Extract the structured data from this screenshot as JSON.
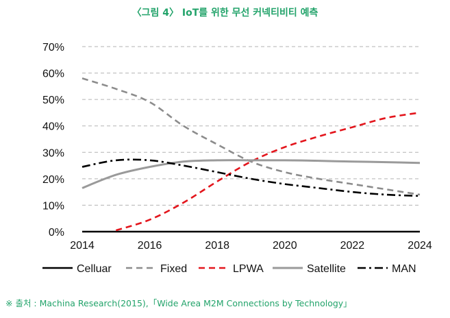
{
  "header": {
    "title": "〈그림 4〉 IoT를 위한 무선 커넥티비티 예측"
  },
  "footer": {
    "source": "※ 출처 : Machina Research(2015),「Wide Area M2M Connections by Technology」"
  },
  "chart_data": {
    "type": "line",
    "title": "〈그림 4〉 IoT를 위한 무선 커넥티비티 예측",
    "xlabel": "",
    "ylabel": "",
    "x": [
      2014,
      2015,
      2016,
      2017,
      2018,
      2019,
      2020,
      2021,
      2022,
      2023,
      2024
    ],
    "xticks": [
      "2014",
      "2016",
      "2018",
      "2020",
      "2022",
      "2024"
    ],
    "xlim": [
      2014,
      2024
    ],
    "yticks": [
      "0%",
      "10%",
      "20%",
      "30%",
      "40%",
      "50%",
      "60%",
      "70%"
    ],
    "ylim": [
      0,
      70
    ],
    "grid": true,
    "legend": "bottom",
    "series": [
      {
        "name": "Celluar",
        "color": "#000000",
        "dash": "solid",
        "values": [
          0,
          0,
          0,
          0,
          0,
          0,
          0,
          0,
          0,
          0,
          0
        ]
      },
      {
        "name": "Fixed",
        "color": "#8c8c8c",
        "dash": "dashed",
        "values": [
          58,
          54,
          49,
          40,
          33,
          26.5,
          22.5,
          20,
          18,
          16,
          14
        ]
      },
      {
        "name": "LPWA",
        "color": "#e3151c",
        "dash": "dashed",
        "values": [
          null,
          0.5,
          4.5,
          11,
          19,
          26.5,
          32,
          36,
          39.5,
          43,
          45
        ]
      },
      {
        "name": "Satellite",
        "color": "#9a9a9a",
        "dash": "solid",
        "values": [
          16.5,
          21.5,
          24.5,
          26.5,
          27,
          27,
          27,
          26.8,
          26.5,
          26.3,
          26
        ]
      },
      {
        "name": "MAN",
        "color": "#000000",
        "dash": "dashdot",
        "values": [
          24.5,
          27,
          27,
          25,
          22.5,
          20,
          18,
          16.5,
          15,
          14,
          13.5
        ]
      }
    ]
  }
}
